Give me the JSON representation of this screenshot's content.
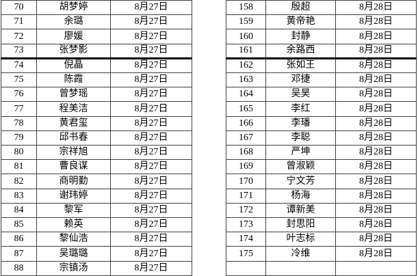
{
  "colors": {
    "background": "#ffffff",
    "text": "#000000",
    "grid_border": "#3f3f3f",
    "thick_separator": "#000000"
  },
  "left_table": {
    "thick_border_after_row": 3,
    "rows": [
      [
        "70",
        "胡梦婷",
        "8月27日"
      ],
      [
        "71",
        "余璐",
        "8月27日"
      ],
      [
        "72",
        "廖媛",
        "8月27日"
      ],
      [
        "73",
        "张梦影",
        "8月27日"
      ],
      [
        "74",
        "倪晶",
        "8月27日"
      ],
      [
        "75",
        "陈霞",
        "8月27日"
      ],
      [
        "76",
        "曾梦瑶",
        "8月27日"
      ],
      [
        "77",
        "程美洁",
        "8月27日"
      ],
      [
        "78",
        "黄君玺",
        "8月27日"
      ],
      [
        "79",
        "邱书春",
        "8月27日"
      ],
      [
        "80",
        "宗祥旭",
        "8月27日"
      ],
      [
        "81",
        "曹良谋",
        "8月27日"
      ],
      [
        "82",
        "商明勤",
        "8月27日"
      ],
      [
        "83",
        "谢玮婷",
        "8月27日"
      ],
      [
        "84",
        "黎军",
        "8月27日"
      ],
      [
        "85",
        "赖英",
        "8月27日"
      ],
      [
        "86",
        "黎仙浩",
        "8月27日"
      ],
      [
        "87",
        "吴璐璐",
        "8月27日"
      ],
      [
        "88",
        "宗镇汤",
        "8月27日"
      ]
    ]
  },
  "right_table": {
    "thick_border_after_row": 3,
    "rows": [
      [
        "158",
        "殷超",
        "8月28日"
      ],
      [
        "159",
        "黄帝艳",
        "8月28日"
      ],
      [
        "160",
        "封静",
        "8月28日"
      ],
      [
        "161",
        "余路西",
        "8月28日"
      ],
      [
        "162",
        "张如王",
        "8月28日"
      ],
      [
        "163",
        "邓捷",
        "8月28日"
      ],
      [
        "164",
        "吴昊",
        "8月28日"
      ],
      [
        "165",
        "李红",
        "8月28日"
      ],
      [
        "166",
        "李璠",
        "8月28日"
      ],
      [
        "167",
        "李聪",
        "8月28日"
      ],
      [
        "168",
        "严坤",
        "8月28日"
      ],
      [
        "169",
        "曾淑颖",
        "8月28日"
      ],
      [
        "170",
        "宁文芳",
        "8月28日"
      ],
      [
        "171",
        "杨海",
        "8月28日"
      ],
      [
        "172",
        "谭新美",
        "8月28日"
      ],
      [
        "173",
        "封思阳",
        "8月28日"
      ],
      [
        "174",
        "叶志标",
        "8月28日"
      ],
      [
        "175",
        "冷维",
        "8月28日"
      ],
      [
        "",
        "",
        ""
      ]
    ]
  }
}
